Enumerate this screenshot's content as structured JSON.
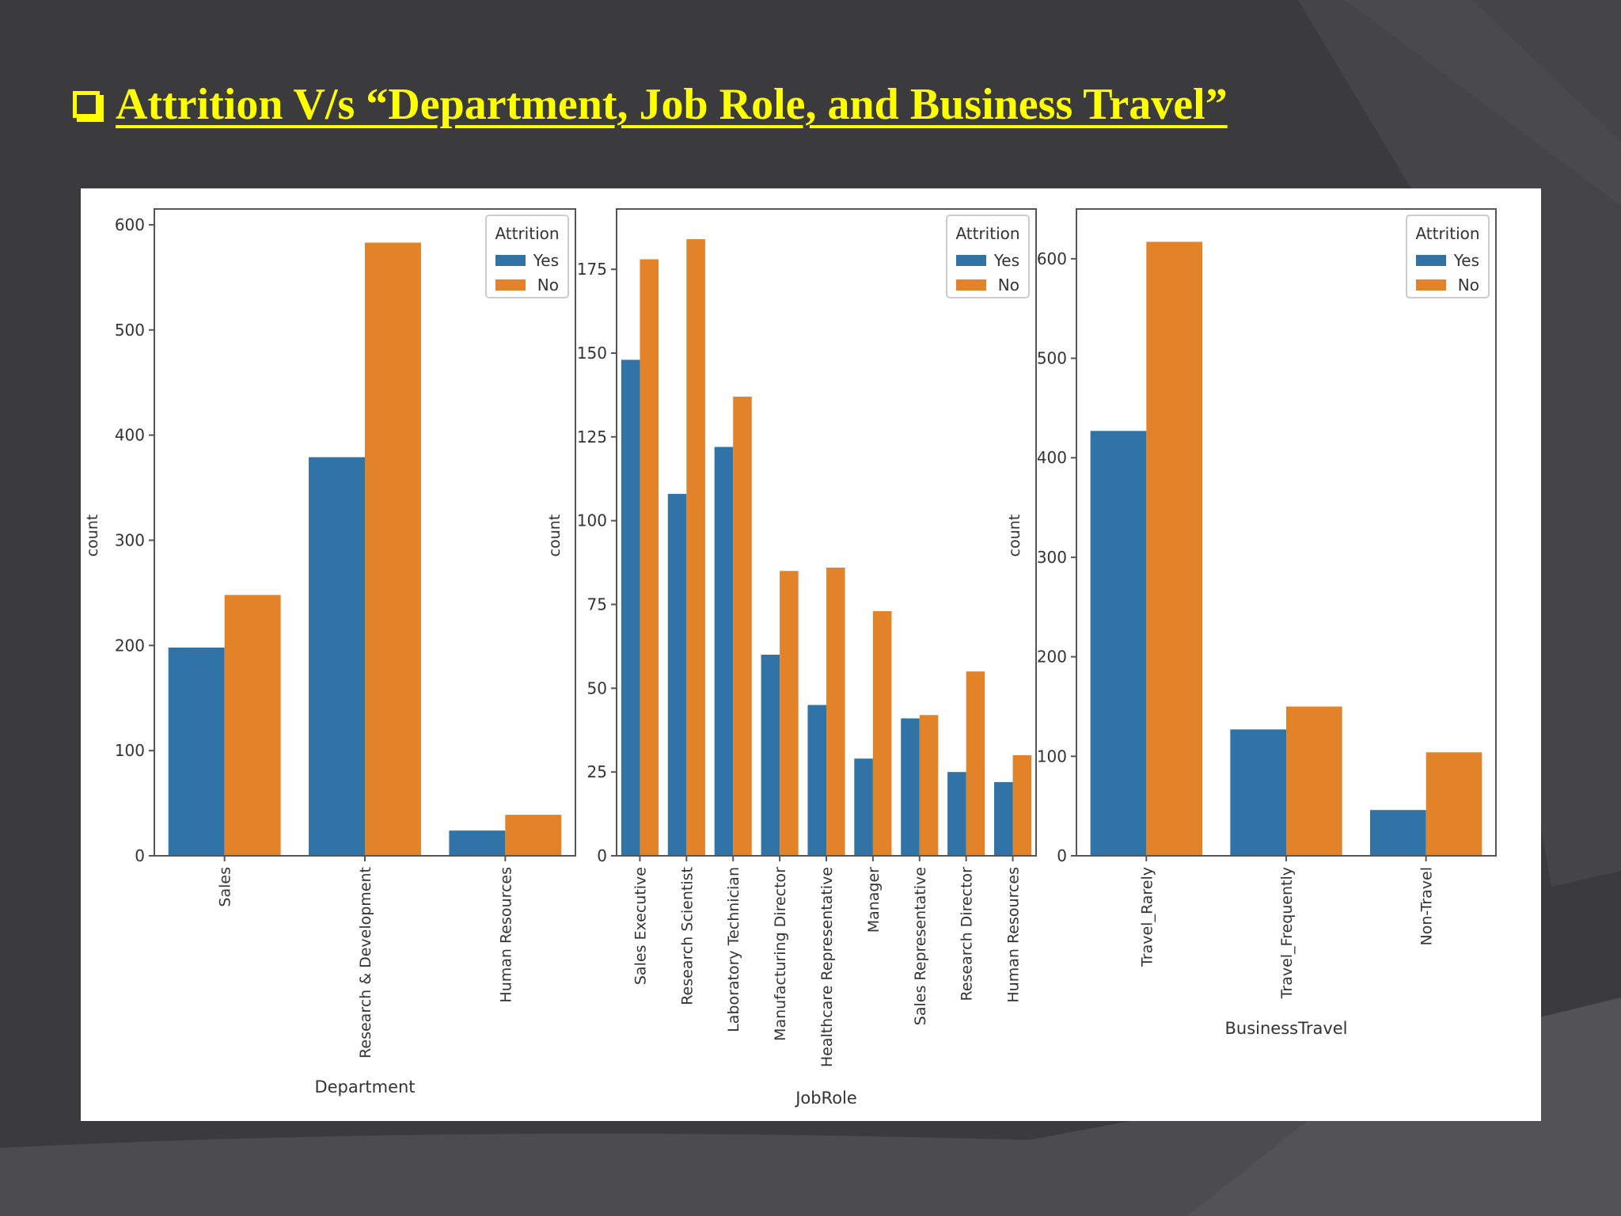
{
  "slide": {
    "title": "Attrition V/s “Department, Job Role, and Business Travel”",
    "colors": {
      "background": "#3b3b3d",
      "title": "#ffff00",
      "yes": "#2f73a7",
      "no": "#e2832a"
    }
  },
  "legend_title": "Attrition",
  "legend_labels": [
    "Yes",
    "No"
  ],
  "chart_data": [
    {
      "type": "bar",
      "xlabel": "Department",
      "ylabel": "count",
      "categories": [
        "Sales",
        "Research & Development",
        "Human Resources"
      ],
      "series": [
        {
          "name": "Yes",
          "values": [
            198,
            379,
            24
          ]
        },
        {
          "name": "No",
          "values": [
            248,
            583,
            39
          ]
        }
      ],
      "ylim": [
        0,
        615
      ],
      "yticks": [
        0,
        100,
        200,
        300,
        400,
        500,
        600
      ],
      "legend": "top-right",
      "grid": false
    },
    {
      "type": "bar",
      "xlabel": "JobRole",
      "ylabel": "count",
      "categories": [
        "Sales Executive",
        "Research Scientist",
        "Laboratory Technician",
        "Manufacturing Director",
        "Healthcare Representative",
        "Manager",
        "Sales Representative",
        "Research Director",
        "Human Resources"
      ],
      "series": [
        {
          "name": "Yes",
          "values": [
            148,
            108,
            122,
            60,
            45,
            29,
            41,
            25,
            22
          ]
        },
        {
          "name": "No",
          "values": [
            178,
            184,
            137,
            85,
            86,
            73,
            42,
            55,
            30
          ]
        }
      ],
      "ylim": [
        0,
        193
      ],
      "yticks": [
        0,
        25,
        50,
        75,
        100,
        125,
        150,
        175
      ],
      "legend": "top-right",
      "grid": false
    },
    {
      "type": "bar",
      "xlabel": "BusinessTravel",
      "ylabel": "count",
      "categories": [
        "Travel_Rarely",
        "Travel_Frequently",
        "Non-Travel"
      ],
      "series": [
        {
          "name": "Yes",
          "values": [
            427,
            127,
            46
          ]
        },
        {
          "name": "No",
          "values": [
            617,
            150,
            104
          ]
        }
      ],
      "ylim": [
        0,
        650
      ],
      "yticks": [
        0,
        100,
        200,
        300,
        400,
        500,
        600
      ],
      "legend": "top-right",
      "grid": false
    }
  ]
}
